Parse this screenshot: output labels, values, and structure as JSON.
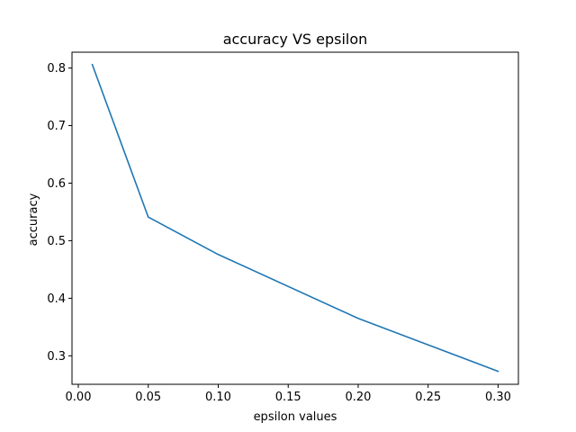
{
  "chart_data": {
    "type": "line",
    "title": "accuracy VS epsilon",
    "xlabel": "epsilon values",
    "ylabel": "accuracy",
    "xlim": [
      -0.0045,
      0.3145
    ],
    "ylim": [
      0.2505,
      0.8275
    ],
    "xticks": [
      "0.00",
      "0.05",
      "0.10",
      "0.15",
      "0.20",
      "0.25",
      "0.30"
    ],
    "xtick_values": [
      0.0,
      0.05,
      0.1,
      0.15,
      0.2,
      0.25,
      0.3
    ],
    "yticks": [
      "0.3",
      "0.4",
      "0.5",
      "0.6",
      "0.7",
      "0.8"
    ],
    "ytick_values": [
      0.3,
      0.4,
      0.5,
      0.6,
      0.7,
      0.8
    ],
    "grid": false,
    "series": [
      {
        "color": "#1f77b4",
        "x": [
          0.01,
          0.05,
          0.1,
          0.2,
          0.3
        ],
        "y": [
          0.806,
          0.541,
          0.476,
          0.365,
          0.273
        ]
      }
    ]
  }
}
